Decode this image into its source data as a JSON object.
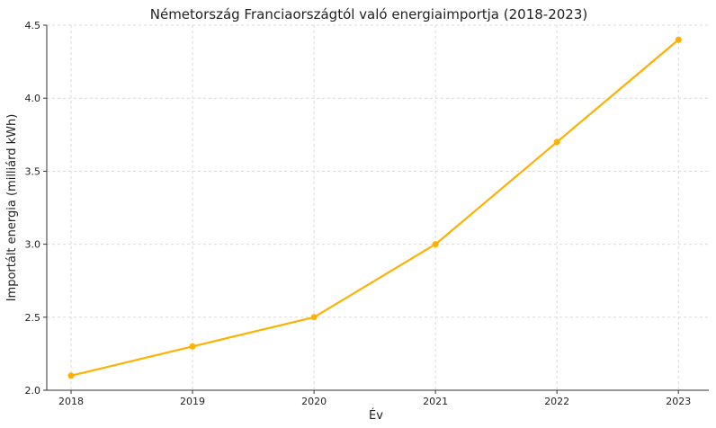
{
  "chart_data": {
    "type": "line",
    "title": "Németország Franciaországtól való energiaimportja (2018-2023)",
    "xlabel": "Év",
    "ylabel": "Importált energia (milliárd kWh)",
    "x": [
      2018,
      2019,
      2020,
      2021,
      2022,
      2023
    ],
    "xticks": [
      "2018",
      "2019",
      "2020",
      "2021",
      "2022",
      "2023"
    ],
    "series": [
      {
        "values": [
          2.1,
          2.3,
          2.5,
          3.0,
          3.7,
          4.4
        ],
        "color": "#FFB000"
      }
    ],
    "ylim": [
      2.0,
      4.5
    ],
    "yticks": [
      "2.0",
      "2.5",
      "3.0",
      "3.5",
      "4.0",
      "4.5"
    ],
    "xlim": [
      2017.8,
      2023.25
    ],
    "grid": true
  }
}
